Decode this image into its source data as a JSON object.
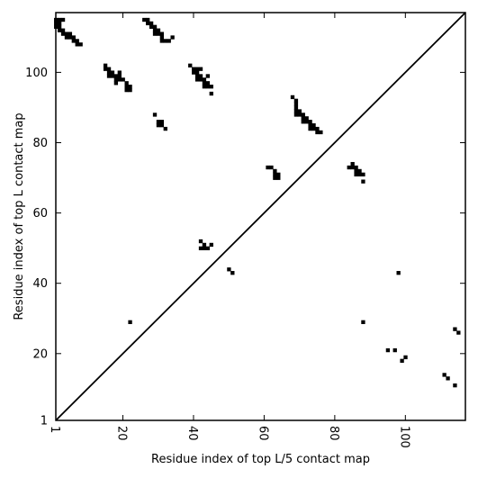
{
  "chart_data": {
    "type": "heatmap",
    "xlabel": "Residue index of top L/5 contact map",
    "ylabel": "Residue index of top L contact map",
    "xlim": [
      1,
      117
    ],
    "ylim": [
      1,
      117
    ],
    "x_ticks": [
      1,
      20,
      40,
      60,
      80,
      100
    ],
    "y_ticks": [
      1,
      20,
      40,
      60,
      80,
      100
    ],
    "diagonal": true,
    "grid": false,
    "cell_color": "#000000",
    "upper_triangle_contacts": [
      [
        1,
        115
      ],
      [
        2,
        115
      ],
      [
        3,
        115
      ],
      [
        1,
        114
      ],
      [
        2,
        114
      ],
      [
        1,
        113
      ],
      [
        2,
        113
      ],
      [
        2,
        112
      ],
      [
        3,
        112
      ],
      [
        3,
        111
      ],
      [
        4,
        111
      ],
      [
        4,
        110
      ],
      [
        5,
        110
      ],
      [
        5,
        111
      ],
      [
        6,
        110
      ],
      [
        6,
        109
      ],
      [
        7,
        109
      ],
      [
        7,
        108
      ],
      [
        8,
        108
      ],
      [
        26,
        115
      ],
      [
        27,
        115
      ],
      [
        27,
        114
      ],
      [
        28,
        114
      ],
      [
        28,
        113
      ],
      [
        29,
        113
      ],
      [
        29,
        112
      ],
      [
        30,
        112
      ],
      [
        30,
        111
      ],
      [
        29,
        111
      ],
      [
        31,
        111
      ],
      [
        31,
        110
      ],
      [
        31,
        109
      ],
      [
        32,
        109
      ],
      [
        33,
        109
      ],
      [
        34,
        110
      ],
      [
        15,
        102
      ],
      [
        15,
        101
      ],
      [
        16,
        101
      ],
      [
        16,
        100
      ],
      [
        17,
        100
      ],
      [
        16,
        99
      ],
      [
        17,
        99
      ],
      [
        18,
        99
      ],
      [
        19,
        99
      ],
      [
        19,
        100
      ],
      [
        18,
        98
      ],
      [
        19,
        98
      ],
      [
        18,
        97
      ],
      [
        20,
        98
      ],
      [
        21,
        97
      ],
      [
        21,
        96
      ],
      [
        22,
        96
      ],
      [
        21,
        95
      ],
      [
        22,
        95
      ],
      [
        39,
        102
      ],
      [
        40,
        101
      ],
      [
        41,
        101
      ],
      [
        42,
        101
      ],
      [
        40,
        100
      ],
      [
        41,
        100
      ],
      [
        41,
        99
      ],
      [
        42,
        99
      ],
      [
        41,
        98
      ],
      [
        42,
        98
      ],
      [
        43,
        98
      ],
      [
        44,
        99
      ],
      [
        43,
        97
      ],
      [
        44,
        97
      ],
      [
        43,
        96
      ],
      [
        44,
        96
      ],
      [
        45,
        96
      ],
      [
        45,
        94
      ],
      [
        29,
        88
      ],
      [
        30,
        86
      ],
      [
        31,
        86
      ],
      [
        30,
        85
      ],
      [
        31,
        85
      ],
      [
        32,
        84
      ],
      [
        68,
        93
      ],
      [
        69,
        92
      ],
      [
        69,
        91
      ],
      [
        69,
        90
      ],
      [
        69,
        89
      ],
      [
        70,
        89
      ],
      [
        69,
        88
      ],
      [
        70,
        88
      ],
      [
        71,
        88
      ],
      [
        71,
        87
      ],
      [
        72,
        87
      ],
      [
        71,
        86
      ],
      [
        72,
        86
      ],
      [
        73,
        86
      ],
      [
        73,
        85
      ],
      [
        74,
        85
      ],
      [
        73,
        84
      ],
      [
        74,
        84
      ],
      [
        75,
        84
      ],
      [
        75,
        83
      ],
      [
        76,
        83
      ],
      [
        61,
        73
      ],
      [
        62,
        73
      ],
      [
        63,
        72
      ],
      [
        63,
        71
      ],
      [
        64,
        71
      ],
      [
        63,
        70
      ],
      [
        64,
        70
      ],
      [
        85,
        74
      ],
      [
        84,
        73
      ],
      [
        85,
        73
      ],
      [
        86,
        73
      ],
      [
        86,
        72
      ],
      [
        87,
        72
      ],
      [
        86,
        71
      ],
      [
        87,
        71
      ],
      [
        88,
        71
      ],
      [
        88,
        69
      ],
      [
        42,
        52
      ],
      [
        43,
        51
      ],
      [
        45,
        51
      ],
      [
        42,
        50
      ],
      [
        43,
        50
      ],
      [
        44,
        50
      ],
      [
        50,
        44
      ],
      [
        51,
        43
      ],
      [
        22,
        29
      ],
      [
        98,
        43
      ],
      [
        88,
        29
      ],
      [
        95,
        21
      ],
      [
        97,
        21
      ],
      [
        99,
        18
      ],
      [
        100,
        19
      ],
      [
        114,
        27
      ],
      [
        115,
        26
      ],
      [
        111,
        14
      ],
      [
        112,
        13
      ],
      [
        114,
        11
      ]
    ]
  }
}
